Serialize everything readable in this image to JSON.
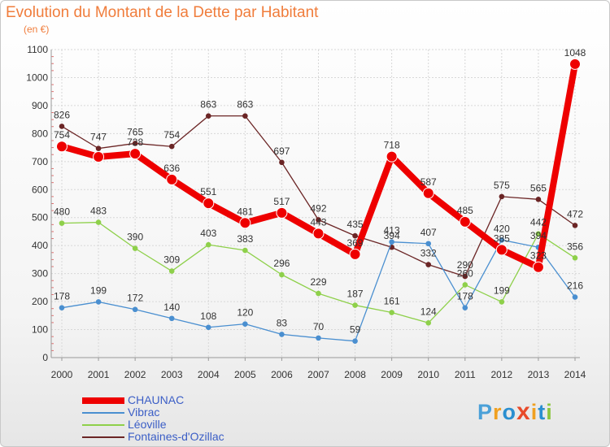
{
  "title": "Evolution du Montant de la Dette par Habitant",
  "subtitle": "(en €)",
  "logo": {
    "letters": [
      "P",
      "r",
      "o",
      "x",
      "i",
      "t",
      "i"
    ],
    "colors": [
      "#4aa0d8",
      "#f0a020",
      "#2a8fd0",
      "#e84a2a",
      "#f0a020",
      "#2a8fd0",
      "#8cc63e"
    ]
  },
  "chart_data": {
    "type": "line",
    "x": [
      "2000",
      "2001",
      "2002",
      "2003",
      "2004",
      "2005",
      "2006",
      "2007",
      "2008",
      "2009",
      "2010",
      "2011",
      "2012",
      "2013",
      "2014"
    ],
    "ylim": [
      0,
      1100
    ],
    "yticks": [
      0,
      100,
      200,
      300,
      400,
      500,
      600,
      700,
      800,
      900,
      1000,
      1100
    ],
    "grid": true,
    "legend_position": "bottom-left",
    "series": [
      {
        "name": "CHAUNAC",
        "color": "#ee0000",
        "values": [
          754,
          717,
          728,
          636,
          551,
          481,
          517,
          443,
          369,
          718,
          587,
          485,
          385,
          323,
          1048
        ],
        "labels": [
          "754",
          "",
          "728",
          "636",
          "551",
          "481",
          "517",
          "443",
          "369",
          "718",
          "587",
          "485",
          "385",
          "323",
          "1048"
        ]
      },
      {
        "name": "Vibrac",
        "color": "#4a8fd0",
        "values": [
          178,
          199,
          172,
          140,
          108,
          120,
          83,
          70,
          59,
          413,
          407,
          178,
          420,
          394,
          216
        ],
        "labels": [
          "178",
          "199",
          "172",
          "140",
          "108",
          "120",
          "83",
          "70",
          "59",
          "413",
          "407",
          "178",
          "420",
          "394",
          "216"
        ]
      },
      {
        "name": "Léoville",
        "color": "#8ed04a",
        "values": [
          480,
          483,
          390,
          309,
          403,
          383,
          296,
          229,
          187,
          161,
          124,
          260,
          199,
          442,
          356
        ],
        "labels": [
          "480",
          "483",
          "390",
          "309",
          "403",
          "383",
          "296",
          "229",
          "187",
          "161",
          "124",
          "260",
          "199",
          "442",
          "356"
        ]
      },
      {
        "name": "Fontaines-d'Ozillac",
        "color": "#6b2525",
        "values": [
          826,
          747,
          765,
          754,
          863,
          863,
          697,
          492,
          435,
          394,
          332,
          290,
          575,
          565,
          472
        ],
        "labels": [
          "826",
          "747",
          "765",
          "754",
          "863",
          "863",
          "697",
          "492",
          "435",
          "394",
          "332",
          "290",
          "575",
          "565",
          "472"
        ]
      }
    ]
  }
}
